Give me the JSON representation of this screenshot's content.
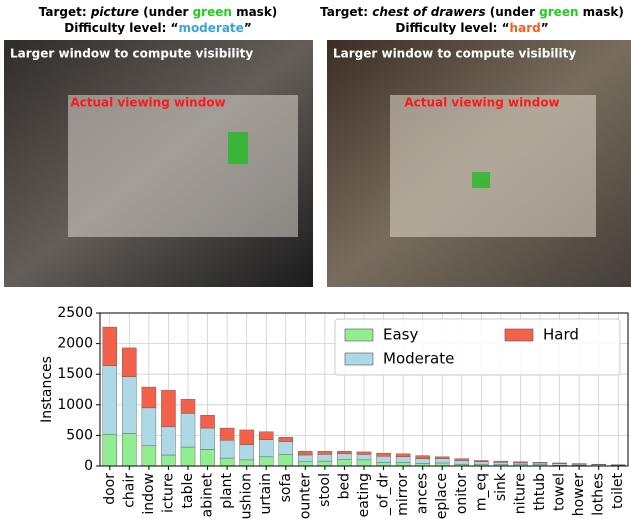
{
  "panels": [
    {
      "target": [
        "Target: ",
        "picture",
        " (under ",
        "green",
        " mask)"
      ],
      "difficulty": [
        "Difficulty level: “",
        "moderate",
        "”"
      ],
      "outer_label": "Larger window to compute visibility",
      "inner_label": "Actual viewing window"
    },
    {
      "target": [
        "Target: ",
        "chest of drawers",
        " (under ",
        "green",
        " mask)"
      ],
      "difficulty": [
        "Difficulty level: “",
        "hard",
        "”"
      ],
      "outer_label": "Larger window to compute visibility",
      "inner_label": "Actual viewing window"
    }
  ],
  "chart_data": {
    "type": "stacked_bar",
    "ylabel": "Instances",
    "categories": [
      "door",
      "chair",
      "indow",
      "icture",
      "table",
      "abinet",
      "plant",
      "ushion",
      "urtain",
      "sofa",
      "ounter",
      "stool",
      "bed",
      "eating",
      "_of_dr",
      "mirror",
      "ances",
      "eplace",
      "onitor",
      "m_eq",
      "sink",
      "niture",
      "thtub",
      "towel",
      "hower",
      "lothes",
      "toilet"
    ],
    "series": [
      {
        "name": "Easy",
        "color": "#90ee90",
        "values": [
          520,
          530,
          330,
          180,
          310,
          270,
          130,
          100,
          150,
          190,
          70,
          80,
          110,
          100,
          60,
          60,
          40,
          50,
          30,
          30,
          20,
          20,
          20,
          10,
          10,
          5,
          5
        ]
      },
      {
        "name": "Moderate",
        "color": "#add8e6",
        "values": [
          1120,
          930,
          620,
          460,
          550,
          350,
          290,
          250,
          280,
          210,
          110,
          110,
          90,
          90,
          100,
          90,
          80,
          70,
          60,
          40,
          40,
          30,
          30,
          30,
          20,
          15,
          10
        ]
      },
      {
        "name": "Hard",
        "color": "#f4614a",
        "values": [
          630,
          470,
          340,
          600,
          230,
          210,
          200,
          240,
          130,
          70,
          60,
          50,
          40,
          40,
          50,
          50,
          50,
          30,
          30,
          20,
          20,
          20,
          10,
          10,
          10,
          10,
          5
        ]
      }
    ],
    "ylim": [
      0,
      2500
    ],
    "yticks": [
      0,
      500,
      1000,
      1500,
      2000,
      2500
    ],
    "grid": true,
    "legend": "upper right"
  }
}
